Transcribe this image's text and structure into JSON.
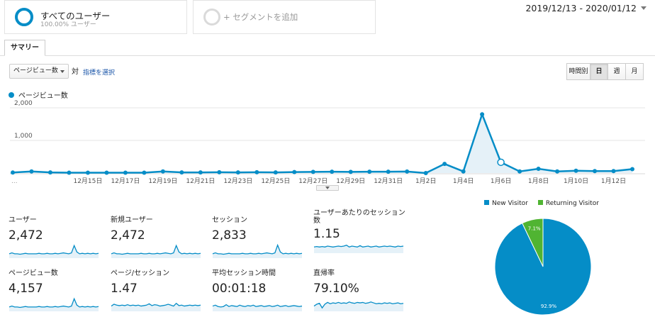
{
  "segments": {
    "primary": {
      "title": "すべてのユーザー",
      "subtitle": "100.00% ユーザー"
    },
    "add_label": "+ セグメントを追加"
  },
  "date_range": "2019/12/13 - 2020/01/12",
  "tabs": {
    "summary": "サマリー"
  },
  "controls": {
    "metric_select": "ページビュー数",
    "vs_label": "対",
    "pick_metric": "指標を選択",
    "period_buttons": [
      "時間別",
      "日",
      "週",
      "月"
    ],
    "active_period": "日"
  },
  "colors": {
    "accent": "#058dc7",
    "returning": "#50b432",
    "area_fill": "#e5f1f8"
  },
  "chart_data": [
    {
      "type": "area",
      "series": [
        {
          "name": "ページビュー数",
          "values": [
            15,
            50,
            20,
            10,
            10,
            10,
            10,
            10,
            50,
            20,
            20,
            25,
            20,
            25,
            20,
            30,
            35,
            40,
            35,
            40,
            40,
            45,
            0,
            280,
            50,
            1800,
            330,
            50,
            130,
            50,
            70,
            60,
            60,
            120
          ]
        }
      ],
      "x": [
        "12/11",
        "12/12",
        "12/13",
        "12/14",
        "12/15",
        "12/16",
        "12/17",
        "12/18",
        "12/19",
        "12/20",
        "12/21",
        "12/22",
        "12/23",
        "12/24",
        "12/25",
        "12/26",
        "12/27",
        "12/28",
        "12/29",
        "12/30",
        "12/31",
        "1/1",
        "1/2",
        "1/3",
        "1/4",
        "1/5",
        "1/6",
        "1/7",
        "1/8",
        "1/9",
        "1/10",
        "1/11",
        "1/12",
        "1/13"
      ],
      "x_tick_labels": [
        "12月15日",
        "12月17日",
        "12月19日",
        "12月21日",
        "12月23日",
        "12月25日",
        "12月27日",
        "12月29日",
        "12月31日",
        "1月2日",
        "1月4日",
        "1月6日",
        "1月8日",
        "1月10日",
        "1月12日"
      ],
      "x_left_label": "...",
      "y_ticks": [
        "1,000",
        "2,000"
      ],
      "ylim": [
        0,
        2000
      ],
      "highlight_index": 26,
      "legend": "top-left"
    },
    {
      "type": "pie",
      "slices": [
        {
          "name": "New Visitor",
          "value": 92.9,
          "label": "92.9%",
          "color": "#058dc7"
        },
        {
          "name": "Returning Visitor",
          "value": 7.1,
          "label": "7.1%",
          "color": "#50b432"
        }
      ],
      "legend": "top"
    }
  ],
  "scorecards": [
    {
      "label": "ユーザー",
      "value": "2,472",
      "trend": [
        8,
        10,
        8,
        8,
        7,
        8,
        9,
        8,
        8,
        8,
        8,
        9,
        8,
        8,
        9,
        8,
        8,
        9,
        8,
        9,
        10,
        9,
        8,
        10,
        26,
        12,
        8,
        9,
        8,
        9,
        8,
        9,
        8,
        9
      ]
    },
    {
      "label": "新規ユーザー",
      "value": "2,472",
      "trend": [
        8,
        10,
        8,
        8,
        7,
        8,
        9,
        8,
        8,
        8,
        8,
        9,
        8,
        8,
        9,
        8,
        8,
        9,
        8,
        9,
        10,
        9,
        8,
        10,
        26,
        12,
        8,
        9,
        8,
        9,
        8,
        9,
        8,
        9
      ]
    },
    {
      "label": "セッション",
      "value": "2,833",
      "trend": [
        8,
        10,
        8,
        8,
        7,
        8,
        9,
        8,
        8,
        8,
        8,
        9,
        8,
        8,
        9,
        8,
        8,
        9,
        8,
        9,
        10,
        9,
        8,
        10,
        27,
        12,
        8,
        9,
        8,
        9,
        8,
        9,
        8,
        9
      ]
    },
    {
      "label": "ユーザーあたりのセッション数",
      "value": "1.15",
      "trend": [
        12,
        13,
        12,
        13,
        12,
        14,
        13,
        12,
        13,
        14,
        13,
        14,
        16,
        12,
        14,
        13,
        12,
        15,
        12,
        13,
        14,
        12,
        13,
        14,
        12,
        13,
        14,
        13,
        14,
        13,
        12,
        14,
        13,
        14
      ]
    },
    {
      "label": "ページビュー数",
      "value": "4,157",
      "trend": [
        8,
        10,
        8,
        8,
        7,
        8,
        9,
        8,
        8,
        8,
        8,
        9,
        8,
        8,
        9,
        8,
        8,
        9,
        8,
        9,
        10,
        9,
        8,
        10,
        26,
        12,
        8,
        9,
        8,
        9,
        8,
        9,
        8,
        9
      ]
    },
    {
      "label": "ページ/セッション",
      "value": "1.47",
      "trend": [
        10,
        14,
        12,
        11,
        12,
        11,
        13,
        11,
        12,
        11,
        12,
        10,
        11,
        12,
        15,
        11,
        13,
        12,
        10,
        11,
        12,
        14,
        12,
        10,
        16,
        11,
        12,
        10,
        11,
        12,
        11,
        12,
        11,
        12
      ]
    },
    {
      "label": "平均セッション時間",
      "value": "00:01:18",
      "trend": [
        10,
        12,
        9,
        8,
        9,
        13,
        9,
        11,
        10,
        9,
        12,
        10,
        9,
        11,
        10,
        12,
        9,
        10,
        11,
        9,
        10,
        11,
        9,
        10,
        12,
        9,
        10,
        11,
        9,
        10,
        11,
        10,
        9,
        10
      ]
    },
    {
      "label": "直帰率",
      "value": "79.10%",
      "trend": [
        10,
        14,
        16,
        6,
        14,
        18,
        15,
        17,
        16,
        18,
        16,
        17,
        16,
        19,
        17,
        16,
        18,
        17,
        18,
        16,
        17,
        19,
        17,
        15,
        16,
        15,
        17,
        16,
        17,
        15,
        16,
        17,
        15,
        16
      ]
    }
  ]
}
